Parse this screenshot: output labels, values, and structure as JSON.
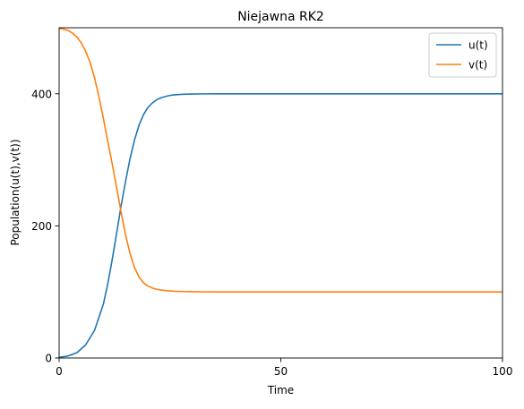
{
  "chart_data": {
    "type": "line",
    "title": "Niejawna RK2",
    "xlabel": "Time",
    "ylabel": "Population(u(t),v(t))",
    "xlim": [
      0,
      100
    ],
    "ylim": [
      0,
      500
    ],
    "xticks": [
      0,
      50,
      100
    ],
    "yticks": [
      0,
      200,
      400
    ],
    "grid": false,
    "legend_position": "top-right",
    "series": [
      {
        "name": "u(t)",
        "color": "#1f77b4",
        "x": [
          0,
          2,
          4,
          6,
          8,
          10,
          11,
          12,
          13,
          14,
          15,
          16,
          17,
          18,
          19,
          20,
          21,
          22,
          23,
          24,
          25,
          26,
          28,
          30,
          33,
          36,
          40,
          50,
          60,
          70,
          80,
          90,
          100
        ],
        "y": [
          1,
          3,
          8,
          20,
          42,
          82,
          113,
          150,
          190,
          231,
          268,
          302,
          330,
          352,
          368,
          379,
          386,
          391,
          394,
          396,
          397.5,
          398.5,
          399.3,
          399.7,
          399.9,
          400,
          400,
          400,
          400,
          400,
          400,
          400,
          400
        ]
      },
      {
        "name": "v(t)",
        "color": "#ff7f0e",
        "x": [
          0,
          1,
          2,
          3,
          4,
          5,
          6,
          7,
          8,
          9,
          10,
          11,
          12,
          13,
          14,
          15,
          16,
          17,
          18,
          19,
          20,
          21,
          22,
          23,
          24,
          25,
          26,
          28,
          30,
          33,
          36,
          40,
          50,
          60,
          70,
          80,
          90,
          100
        ],
        "y": [
          499,
          498,
          496,
          492,
          486,
          477,
          464,
          447,
          424,
          395,
          362,
          327,
          293,
          257,
          220,
          186,
          158,
          137,
          123,
          114,
          109,
          106,
          104,
          103,
          102,
          101.5,
          101,
          100.6,
          100.3,
          100.1,
          100,
          100,
          100,
          100,
          100,
          100,
          100,
          100
        ]
      }
    ]
  }
}
